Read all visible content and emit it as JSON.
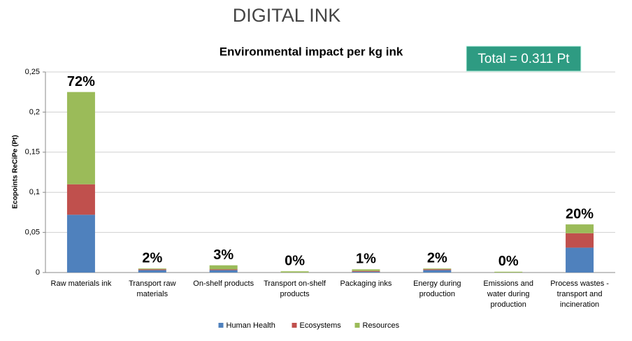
{
  "header": "DIGITAL INK",
  "total_box": "Total = 0.311 Pt",
  "chart_data": {
    "type": "bar",
    "stacked": true,
    "title": "Environmental impact per kg ink",
    "y_label": "Ecopoints ReCiPe (Pt)",
    "categories": [
      "Raw materials ink",
      "Transport raw materials",
      "On-shelf products",
      "Transport on-shelf products",
      "Packaging inks",
      "Energy during production",
      "Emissions and water during production",
      "Process wastes - transport and incineration"
    ],
    "series": [
      {
        "name": "Human Health",
        "color": "#4f81bd",
        "values": [
          0.072,
          0.003,
          0.003,
          0,
          0.001,
          0.003,
          0,
          0.031
        ]
      },
      {
        "name": "Ecosystems",
        "color": "#c0504d",
        "values": [
          0.038,
          0.001,
          0.001,
          0,
          0.001,
          0.001,
          0,
          0.018
        ]
      },
      {
        "name": "Resources",
        "color": "#9bbb59",
        "values": [
          0.115,
          0.001,
          0.005,
          0.0015,
          0.002,
          0.001,
          0.001,
          0.011
        ]
      }
    ],
    "annotations": [
      "72%",
      "2%",
      "3%",
      "0%",
      "1%",
      "2%",
      "0%",
      "20%"
    ],
    "ylim": [
      0,
      0.25
    ],
    "yticks": [
      0,
      {
        "value": 0.05,
        "label": "0,05"
      },
      {
        "value": 0.1,
        "label": "0,1"
      },
      {
        "value": 0.15,
        "label": "0,15"
      },
      {
        "value": 0.2,
        "label": "0,2"
      },
      {
        "value": 0.25,
        "label": "0,25"
      }
    ],
    "grid": true,
    "legend": "bottom"
  }
}
